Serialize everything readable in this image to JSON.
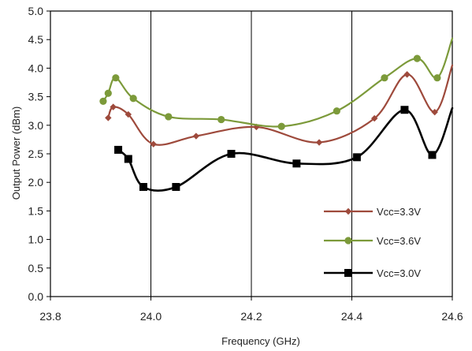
{
  "chart_data": {
    "type": "line",
    "xlabel": "Frequency (GHz)",
    "ylabel": "Output Power  (dBm)",
    "xlim": [
      23.8,
      24.6
    ],
    "ylim": [
      0.0,
      5.0
    ],
    "x_ticks": [
      23.8,
      24.0,
      24.2,
      24.4,
      24.6
    ],
    "x_tick_labels": [
      "23.8",
      "24.0",
      "24.2",
      "24.4",
      "24.6"
    ],
    "y_ticks": [
      0.0,
      0.5,
      1.0,
      1.5,
      2.0,
      2.5,
      3.0,
      3.5,
      4.0,
      4.5,
      5.0
    ],
    "y_tick_labels": [
      "0.0",
      "0.5",
      "1.0",
      "1.5",
      "2.0",
      "2.5",
      "3.0",
      "3.5",
      "4.0",
      "4.5",
      "5.0"
    ],
    "grid": {
      "vertical": true,
      "horizontal": false
    },
    "legend_position": "bottom-right",
    "series": [
      {
        "name": "Vcc=3.3V",
        "color": "#9e4a3c",
        "marker": "diamond",
        "x": [
          23.915,
          23.925,
          23.955,
          24.005,
          24.09,
          24.21,
          24.335,
          24.445,
          24.51,
          24.565,
          24.6
        ],
        "y": [
          3.13,
          3.32,
          3.19,
          2.67,
          2.81,
          2.97,
          2.7,
          3.12,
          3.89,
          3.23,
          4.05
        ]
      },
      {
        "name": "Vcc=3.6V",
        "color": "#7c9a3a",
        "marker": "circle",
        "x": [
          23.905,
          23.915,
          23.93,
          23.965,
          24.035,
          24.14,
          24.26,
          24.37,
          24.465,
          24.53,
          24.57,
          24.6
        ],
        "y": [
          3.42,
          3.56,
          3.83,
          3.47,
          3.15,
          3.1,
          2.98,
          3.25,
          3.83,
          4.17,
          3.83,
          4.52
        ]
      },
      {
        "name": "Vcc=3.0V",
        "color": "#000000",
        "marker": "square",
        "x": [
          23.935,
          23.955,
          23.985,
          24.05,
          24.16,
          24.29,
          24.41,
          24.505,
          24.56,
          24.6
        ],
        "y": [
          2.57,
          2.41,
          1.92,
          1.92,
          2.5,
          2.33,
          2.44,
          3.27,
          2.48,
          3.3
        ]
      }
    ]
  }
}
